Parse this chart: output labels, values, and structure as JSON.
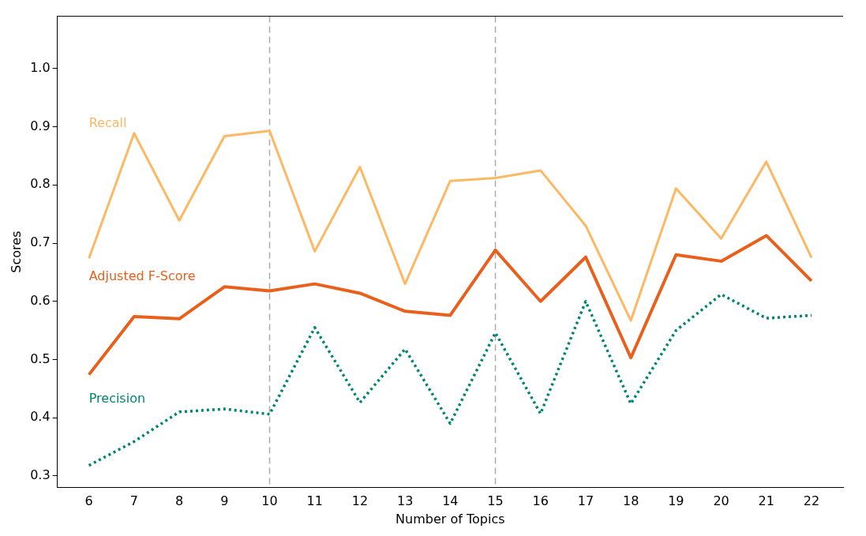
{
  "chart_data": {
    "type": "line",
    "xlabel": "Number of Topics",
    "ylabel": "Scores",
    "x": [
      6,
      7,
      8,
      9,
      10,
      11,
      12,
      13,
      14,
      15,
      16,
      17,
      18,
      19,
      20,
      21,
      22
    ],
    "series": [
      {
        "name": "Recall",
        "color": "#fdb863",
        "values": [
          0.674,
          0.889,
          0.739,
          0.884,
          0.893,
          0.686,
          0.831,
          0.63,
          0.807,
          0.812,
          0.825,
          0.73,
          0.567,
          0.794,
          0.708,
          0.84,
          0.675
        ]
      },
      {
        "name": "Adjusted F-Score",
        "color": "#e8601c",
        "values": [
          0.474,
          0.574,
          0.57,
          0.625,
          0.618,
          0.63,
          0.614,
          0.583,
          0.576,
          0.688,
          0.6,
          0.676,
          0.503,
          0.68,
          0.669,
          0.713,
          0.635
        ]
      },
      {
        "name": "Precision",
        "color": "#018571",
        "line_style": "dotted",
        "values": [
          0.318,
          0.359,
          0.41,
          0.415,
          0.406,
          0.555,
          0.426,
          0.518,
          0.39,
          0.546,
          0.407,
          0.6,
          0.424,
          0.55,
          0.612,
          0.571,
          0.576
        ]
      }
    ],
    "xlim": [
      5.3,
      22.7
    ],
    "xticks": [
      6,
      7,
      8,
      9,
      10,
      11,
      12,
      13,
      14,
      15,
      16,
      17,
      18,
      19,
      20,
      21,
      22
    ],
    "ylim": [
      0.28,
      1.09
    ],
    "yticks": [
      0.3,
      0.4,
      0.5,
      0.6,
      0.7,
      0.8,
      0.9,
      {
        "value": 1,
        "label": "1.0"
      }
    ],
    "ref_lines": [
      {
        "axis": "x",
        "value": 10,
        "color": "#aaaaaa",
        "line_style": "dashed"
      },
      {
        "axis": "x",
        "value": 15,
        "color": "#aaaaaa",
        "line_style": "dashed"
      }
    ],
    "grid": false,
    "legend": false,
    "marker": "none"
  }
}
